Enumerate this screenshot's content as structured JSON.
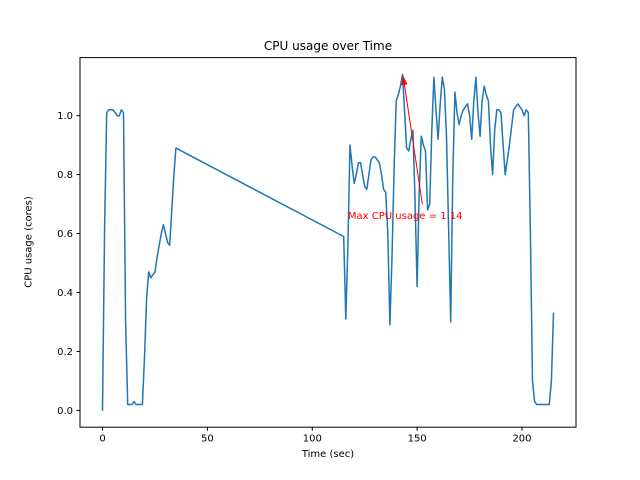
{
  "chart_data": {
    "type": "line",
    "title": "CPU usage over Time",
    "xlabel": "Time (sec)",
    "ylabel": "CPU usage (cores)",
    "line_color": "#1f77b4",
    "axis_color": "#000000",
    "grid": false,
    "legend": null,
    "xlim": [
      -10.75,
      225.75
    ],
    "ylim": [
      -0.057,
      1.197
    ],
    "x_ticks": [
      0,
      50,
      100,
      150,
      200
    ],
    "x_tick_labels": [
      "0",
      "50",
      "100",
      "150",
      "200"
    ],
    "y_ticks": [
      0.0,
      0.2,
      0.4,
      0.6,
      0.8,
      1.0
    ],
    "y_tick_labels": [
      "0.0",
      "0.2",
      "0.4",
      "0.6",
      "0.8",
      "1.0"
    ],
    "max_value": 1.14,
    "annotation": {
      "text": "Max CPU usage = 1.14",
      "color": "#ff0000",
      "text_xy": [
        117,
        0.655
      ],
      "arrow_tail_xy": [
        152.5,
        0.7
      ],
      "arrow_tip_xy": [
        143.3,
        1.135
      ]
    },
    "series": [
      {
        "name": "CPU usage",
        "points": [
          [
            0,
            0.0
          ],
          [
            1,
            0.62
          ],
          [
            2,
            1.01
          ],
          [
            3,
            1.02
          ],
          [
            4,
            1.02
          ],
          [
            5,
            1.02
          ],
          [
            6,
            1.01
          ],
          [
            7,
            1.0
          ],
          [
            8,
            1.0
          ],
          [
            9,
            1.02
          ],
          [
            10,
            1.01
          ],
          [
            11,
            0.3
          ],
          [
            12,
            0.02
          ],
          [
            14,
            0.02
          ],
          [
            15,
            0.03
          ],
          [
            16,
            0.02
          ],
          [
            18,
            0.02
          ],
          [
            19,
            0.02
          ],
          [
            20,
            0.18
          ],
          [
            21,
            0.38
          ],
          [
            22,
            0.47
          ],
          [
            23,
            0.45
          ],
          [
            24,
            0.46
          ],
          [
            25,
            0.47
          ],
          [
            26,
            0.52
          ],
          [
            27,
            0.56
          ],
          [
            28,
            0.6
          ],
          [
            29,
            0.63
          ],
          [
            30,
            0.6
          ],
          [
            31,
            0.57
          ],
          [
            32,
            0.56
          ],
          [
            33,
            0.68
          ],
          [
            34,
            0.8
          ],
          [
            35,
            0.89
          ],
          [
            115,
            0.59
          ],
          [
            116,
            0.31
          ],
          [
            117,
            0.56
          ],
          [
            118,
            0.9
          ],
          [
            119,
            0.83
          ],
          [
            120,
            0.77
          ],
          [
            121,
            0.8
          ],
          [
            122,
            0.84
          ],
          [
            123,
            0.84
          ],
          [
            124,
            0.8
          ],
          [
            125,
            0.76
          ],
          [
            126,
            0.75
          ],
          [
            127,
            0.8
          ],
          [
            128,
            0.85
          ],
          [
            129,
            0.86
          ],
          [
            130,
            0.86
          ],
          [
            131,
            0.85
          ],
          [
            132,
            0.84
          ],
          [
            133,
            0.8
          ],
          [
            134,
            0.75
          ],
          [
            135,
            0.74
          ],
          [
            136,
            0.6
          ],
          [
            137,
            0.29
          ],
          [
            138,
            0.52
          ],
          [
            139,
            0.82
          ],
          [
            140,
            1.05
          ],
          [
            141,
            1.07
          ],
          [
            142,
            1.1
          ],
          [
            143,
            1.14
          ],
          [
            144,
            1.02
          ],
          [
            145,
            0.89
          ],
          [
            146,
            0.88
          ],
          [
            147,
            0.92
          ],
          [
            148,
            0.95
          ],
          [
            149,
            0.72
          ],
          [
            150,
            0.42
          ],
          [
            151,
            0.74
          ],
          [
            152,
            0.93
          ],
          [
            153,
            0.9
          ],
          [
            154,
            0.88
          ],
          [
            155,
            0.68
          ],
          [
            156,
            0.7
          ],
          [
            157,
            0.95
          ],
          [
            158,
            1.13
          ],
          [
            159,
            1.02
          ],
          [
            160,
            0.92
          ],
          [
            161,
            1.04
          ],
          [
            162,
            1.13
          ],
          [
            163,
            1.09
          ],
          [
            164,
            0.93
          ],
          [
            165,
            0.62
          ],
          [
            166,
            0.3
          ],
          [
            167,
            0.8
          ],
          [
            168,
            1.08
          ],
          [
            169,
            1.01
          ],
          [
            170,
            0.97
          ],
          [
            171,
            1.0
          ],
          [
            172,
            1.02
          ],
          [
            173,
            1.03
          ],
          [
            174,
            1.04
          ],
          [
            175,
            1.0
          ],
          [
            176,
            0.92
          ],
          [
            177,
            1.05
          ],
          [
            178,
            1.13
          ],
          [
            179,
            1.01
          ],
          [
            180,
            0.93
          ],
          [
            181,
            1.05
          ],
          [
            182,
            1.1
          ],
          [
            183,
            1.07
          ],
          [
            184,
            1.05
          ],
          [
            185,
            0.9
          ],
          [
            186,
            0.8
          ],
          [
            187,
            0.95
          ],
          [
            188,
            1.02
          ],
          [
            189,
            1.02
          ],
          [
            190,
            1.01
          ],
          [
            191,
            0.9
          ],
          [
            192,
            0.8
          ],
          [
            193,
            0.85
          ],
          [
            194,
            0.9
          ],
          [
            195,
            0.96
          ],
          [
            196,
            1.02
          ],
          [
            197,
            1.03
          ],
          [
            198,
            1.04
          ],
          [
            199,
            1.03
          ],
          [
            200,
            1.02
          ],
          [
            201,
            1.0
          ],
          [
            202,
            1.02
          ],
          [
            203,
            1.01
          ],
          [
            204,
            0.6
          ],
          [
            205,
            0.1
          ],
          [
            206,
            0.03
          ],
          [
            207,
            0.02
          ],
          [
            208,
            0.02
          ],
          [
            210,
            0.02
          ],
          [
            212,
            0.02
          ],
          [
            213,
            0.02
          ],
          [
            214,
            0.1
          ],
          [
            215,
            0.33
          ]
        ]
      }
    ]
  }
}
